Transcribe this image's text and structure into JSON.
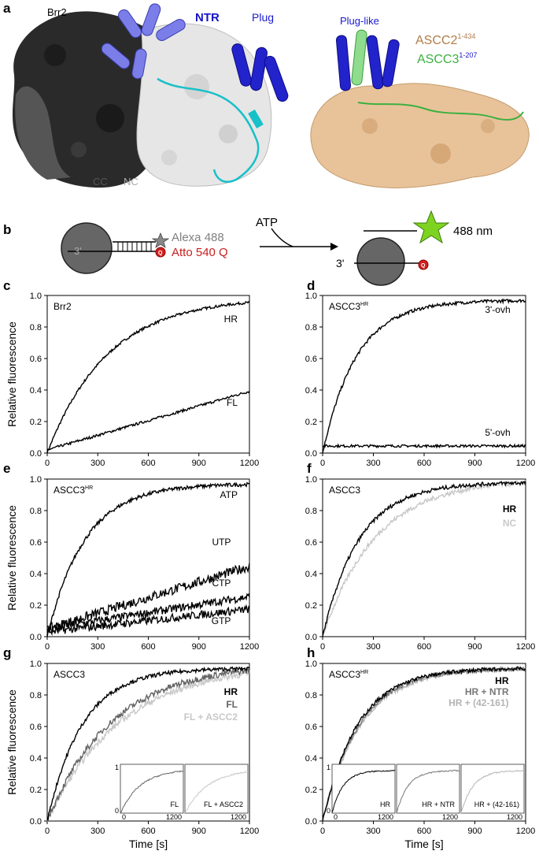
{
  "panel_a": {
    "letter": "a",
    "brr2": "Brr2",
    "ntr": "NTR",
    "plug": "Plug",
    "cc": "CC",
    "nc": "NC",
    "plug_like": "Plug-like",
    "ascc2": "ASCC2",
    "ascc2_sup": "1-434",
    "ascc3": "ASCC3",
    "ascc3_sup": "1-207"
  },
  "panel_b": {
    "letter": "b",
    "alexa": "Alexa 488",
    "atto": "Atto 540 Q",
    "atp": "ATP",
    "nm488": "488 nm",
    "three_prime_left": "3'",
    "three_prime_right": "3'",
    "q_left": "Q",
    "q_right": "Q"
  },
  "colors": {
    "ntr": "#1515c8",
    "plug": "#1a1acc",
    "ascc2": "#b07c4a",
    "ascc3": "#3cb040",
    "alexa": "#808080",
    "atto": "#c81e1e",
    "star": "#7ed321"
  },
  "chart_data": [
    {
      "type": "line",
      "panel": "c",
      "title": "Brr2",
      "ylabel": "Relative fluorescence",
      "xlabel": "",
      "xlim": [
        0,
        1200
      ],
      "ylim": [
        0,
        1
      ],
      "xticks": [
        "0",
        "300",
        "600",
        "900",
        "1200"
      ],
      "yticks": [
        "0.0",
        "0.2",
        "0.4",
        "0.6",
        "0.8",
        "1.0"
      ],
      "series": [
        {
          "name": "HR",
          "color": "#000000",
          "kind": "exp",
          "amp": 0.99,
          "k": 0.0028,
          "noise": 0.008,
          "label_pos": [
            1130,
            0.83
          ]
        },
        {
          "name": "FL",
          "color": "#000000",
          "kind": "lin",
          "slope": 0.00031,
          "noise": 0.008,
          "label_pos": [
            1130,
            0.3
          ]
        }
      ]
    },
    {
      "type": "line",
      "panel": "d",
      "title": "ASCC3",
      "title_sup": "HR",
      "ylabel": "",
      "xlabel": "",
      "xlim": [
        0,
        1200
      ],
      "ylim": [
        0,
        1
      ],
      "xticks": [
        "0",
        "300",
        "600",
        "900",
        "1200"
      ],
      "yticks": [
        "0.0",
        "0.2",
        "0.4",
        "0.6",
        "0.8",
        "1.0"
      ],
      "series": [
        {
          "name": "3'-ovh",
          "color": "#000000",
          "kind": "exp",
          "amp": 0.97,
          "k": 0.005,
          "noise": 0.01,
          "label_pos": [
            1110,
            0.89
          ]
        },
        {
          "name": "5'-ovh",
          "color": "#000000",
          "kind": "flat",
          "level": 0.045,
          "noise": 0.008,
          "label_pos": [
            1110,
            0.11
          ]
        }
      ]
    },
    {
      "type": "line",
      "panel": "e",
      "title": "ASCC3",
      "title_sup": "HR",
      "ylabel": "Relative fluorescence",
      "xlabel": "",
      "xlim": [
        0,
        1200
      ],
      "ylim": [
        0,
        1
      ],
      "xticks": [
        "0",
        "300",
        "600",
        "900",
        "1200"
      ],
      "yticks": [
        "0.0",
        "0.2",
        "0.4",
        "0.6",
        "0.8",
        "1.0"
      ],
      "series": [
        {
          "name": "ATP",
          "color": "#000000",
          "kind": "exp",
          "amp": 0.97,
          "k": 0.0045,
          "noise": 0.012,
          "label_pos": [
            1130,
            0.88
          ]
        },
        {
          "name": "UTP",
          "color": "#000000",
          "kind": "lin",
          "slope": 0.00033,
          "offset": 0.05,
          "noise": 0.03,
          "label_pos": [
            1090,
            0.58
          ]
        },
        {
          "name": "CTP",
          "color": "#000000",
          "kind": "lin",
          "slope": 0.00017,
          "offset": 0.05,
          "noise": 0.025,
          "label_pos": [
            1090,
            0.32
          ]
        },
        {
          "name": "GTP",
          "color": "#000000",
          "kind": "lin",
          "slope": 0.00012,
          "offset": 0.03,
          "noise": 0.025,
          "label_pos": [
            1090,
            0.08
          ]
        }
      ]
    },
    {
      "type": "line",
      "panel": "f",
      "title": "ASCC3",
      "ylabel": "",
      "xlabel": "",
      "xlim": [
        0,
        1200
      ],
      "ylim": [
        0,
        1
      ],
      "xticks": [
        "0",
        "300",
        "600",
        "900",
        "1200"
      ],
      "yticks": [
        "0.0",
        "0.2",
        "0.4",
        "0.6",
        "0.8",
        "1.0"
      ],
      "series": [
        {
          "name": "NC",
          "color": "#c8c8c8",
          "kind": "exp",
          "amp": 1.0,
          "k": 0.0032,
          "noise": 0.015,
          "label_pos": [
            1145,
            0.7
          ],
          "bold": true
        },
        {
          "name": "HR",
          "color": "#000000",
          "kind": "exp",
          "amp": 0.98,
          "k": 0.0046,
          "noise": 0.012,
          "label_pos": [
            1145,
            0.79
          ],
          "bold": true
        }
      ]
    },
    {
      "type": "line",
      "panel": "g",
      "title": "ASCC3",
      "ylabel": "Relative fluorescence",
      "xlabel": "Time [s]",
      "xlim": [
        0,
        1200
      ],
      "ylim": [
        0,
        1
      ],
      "xticks": [
        "0",
        "300",
        "600",
        "900",
        "1200"
      ],
      "yticks": [
        "0.0",
        "0.2",
        "0.4",
        "0.6",
        "0.8",
        "1.0"
      ],
      "series": [
        {
          "name": "FL + ASCC2",
          "color": "#c8c8c8",
          "kind": "exp",
          "amp": 1.0,
          "k": 0.0023,
          "noise": 0.02,
          "label_pos": [
            1130,
            0.64
          ],
          "bold": true
        },
        {
          "name": "FL",
          "color": "#646464",
          "kind": "exp",
          "amp": 1.0,
          "k": 0.0026,
          "noise": 0.02,
          "label_pos": [
            1130,
            0.72
          ],
          "bold": true
        },
        {
          "name": "HR",
          "color": "#000000",
          "kind": "exp",
          "amp": 0.97,
          "k": 0.0048,
          "noise": 0.012,
          "label_pos": [
            1130,
            0.8
          ],
          "bold": true
        }
      ],
      "insets": [
        {
          "label": "FL",
          "color": "#646464",
          "amp": 1.0,
          "k": 0.0026,
          "ytop": "1",
          "ybottom": "0",
          "xleft": "0",
          "xright": "1200"
        },
        {
          "label": "FL + ASCC2",
          "color": "#c8c8c8",
          "amp": 1.0,
          "k": 0.0023,
          "ytop": "",
          "ybottom": "",
          "xleft": "",
          "xright": "1200"
        }
      ]
    },
    {
      "type": "line",
      "panel": "h",
      "title": "ASCC3",
      "title_sup": "HR",
      "ylabel": "",
      "xlabel": "Time [s]",
      "xlim": [
        0,
        1200
      ],
      "ylim": [
        0,
        1
      ],
      "xticks": [
        "0",
        "300",
        "600",
        "900",
        "1200"
      ],
      "yticks": [
        "0.0",
        "0.2",
        "0.4",
        "0.6",
        "0.8",
        "1.0"
      ],
      "series": [
        {
          "name": "HR + (42-161)",
          "color": "#b4b4b4",
          "kind": "exp",
          "amp": 0.97,
          "k": 0.0044,
          "noise": 0.012,
          "label_pos": [
            1100,
            0.73
          ],
          "bold": true
        },
        {
          "name": "HR + NTR",
          "color": "#787878",
          "kind": "exp",
          "amp": 0.97,
          "k": 0.0046,
          "noise": 0.012,
          "label_pos": [
            1100,
            0.8
          ],
          "bold": true
        },
        {
          "name": "HR",
          "color": "#000000",
          "kind": "exp",
          "amp": 0.97,
          "k": 0.0048,
          "noise": 0.012,
          "label_pos": [
            1100,
            0.87
          ],
          "bold": true
        }
      ],
      "insets": [
        {
          "label": "HR",
          "color": "#000000",
          "amp": 0.97,
          "k": 0.0048,
          "ytop": "1",
          "ybottom": "0",
          "xleft": "0",
          "xright": "1200"
        },
        {
          "label": "HR + NTR",
          "color": "#787878",
          "amp": 0.97,
          "k": 0.0046,
          "ytop": "",
          "ybottom": "",
          "xleft": "",
          "xright": "1200"
        },
        {
          "label": "HR + (42-161)",
          "color": "#b4b4b4",
          "amp": 0.97,
          "k": 0.0044,
          "ytop": "",
          "ybottom": "",
          "xleft": "",
          "xright": "1200"
        }
      ]
    }
  ]
}
